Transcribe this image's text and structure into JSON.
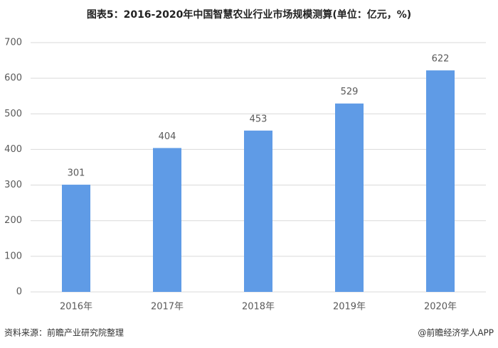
{
  "chart_data": {
    "type": "bar",
    "title": "图表5：2016-2020年中国智慧农业行业市场规模测算(单位：亿元，%)",
    "categories": [
      "2016年",
      "2017年",
      "2018年",
      "2019年",
      "2020年"
    ],
    "values": [
      301,
      404,
      453,
      529,
      622
    ],
    "color": "#5f9be6",
    "ylim": [
      0,
      700
    ],
    "yticks": [
      0,
      100,
      200,
      300,
      400,
      500,
      600,
      700
    ],
    "grid": true,
    "source": "资料来源：前瞻产业研究院整理",
    "credit": "@前瞻经济学人APP"
  }
}
